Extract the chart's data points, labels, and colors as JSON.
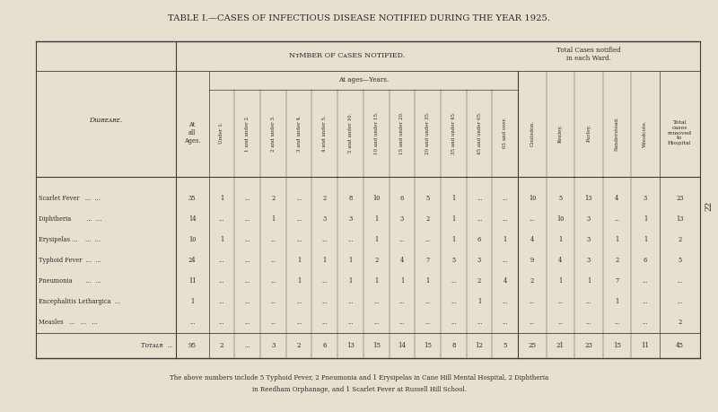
{
  "title": "TABLE I.—CASES OF INFECTIOUS DISEASE NOTIFIED DURING THE YEAR 1925.",
  "bg_color": "#e8e0cf",
  "text_color": "#2a2a2a",
  "col_headers_ages": [
    "Under 1.",
    "1 and under 2.",
    "2 and under 3.",
    "3 and under 4.",
    "4 and under 5.",
    "5 and under 10.",
    "10 and under 15.",
    "15 and under 20.",
    "20 and under 35.",
    "35 and under 45.",
    "45 and under 65.",
    "65 and over."
  ],
  "col_headers_ward": [
    "Coulsdon.",
    "Kenley.",
    "Purley.",
    "Sanderstead.",
    "Woodcote."
  ],
  "col_header_last": "Total\ncases\nremoved\nto\nHospital",
  "diseases": [
    [
      "Scarlet Fever",
      "...",
      "..."
    ],
    [
      "Diphtheria",
      "...",
      "..."
    ],
    [
      "Erysipelas ...",
      "...",
      "..."
    ],
    [
      "Typhoid Fever",
      "...",
      "..."
    ],
    [
      "Pneumonia",
      "...",
      "..."
    ],
    [
      "Encephalitis Lethargica",
      "..."
    ],
    [
      "Measles",
      "...",
      "...",
      "..."
    ]
  ],
  "data": [
    [
      35,
      1,
      "...",
      2,
      "...",
      2,
      8,
      10,
      6,
      5,
      1,
      "...",
      "...",
      10,
      5,
      13,
      4,
      3,
      23
    ],
    [
      14,
      "...",
      "...",
      1,
      "...",
      3,
      3,
      1,
      3,
      2,
      1,
      "...",
      "...",
      "...",
      10,
      3,
      "...",
      1,
      13
    ],
    [
      10,
      1,
      "...",
      "...",
      "...",
      "...",
      "...",
      1,
      "...",
      "...",
      1,
      6,
      1,
      4,
      1,
      3,
      1,
      1,
      2
    ],
    [
      24,
      "...",
      "...",
      "...",
      1,
      1,
      1,
      2,
      4,
      7,
      5,
      3,
      "...",
      9,
      4,
      3,
      2,
      6,
      5
    ],
    [
      11,
      "...",
      "...",
      "...",
      1,
      "...",
      1,
      1,
      1,
      1,
      "...",
      2,
      4,
      2,
      1,
      1,
      7,
      "...",
      "..."
    ],
    [
      1,
      "...",
      "...",
      "...",
      "...",
      "...",
      "...",
      "...",
      "...",
      "...",
      "...",
      1,
      "...",
      "...",
      "...",
      "...",
      1,
      "...",
      "..."
    ],
    [
      "...",
      "...",
      "...",
      "...",
      "...",
      "...",
      "...",
      "...",
      "...",
      "...",
      "...",
      "...",
      "...",
      "...",
      "...",
      "...",
      "...",
      "...",
      2
    ]
  ],
  "totals": [
    95,
    2,
    "...",
    3,
    2,
    6,
    13,
    15,
    14,
    15,
    8,
    12,
    5,
    25,
    21,
    23,
    15,
    11,
    45
  ],
  "footnote_line1": "The above numbers include 5 Typhoid Fever, 2 Pneumonia and 1 Erysipelas in Cane Hill Mental Hospital, 2 Diphtheria",
  "footnote_line2": "in Reedham Orphanage, and 1 Scarlet Fever at Russell Hill School.",
  "page_num": "22"
}
